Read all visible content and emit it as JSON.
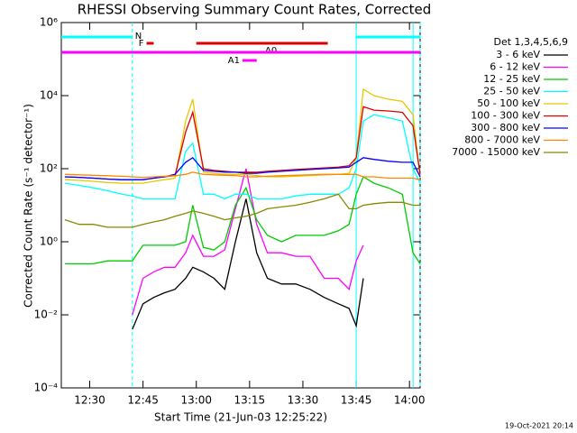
{
  "chart_data": {
    "type": "line",
    "title": "RHESSI Observing Summary Count Rates, Corrected",
    "x_label": "Start Time (21-Jun-03 12:25:22)",
    "y_label": "Corrected Count Rate (s⁻¹ detector⁻¹)",
    "footer": "19-Oct-2021 20:14",
    "legend_title": "Det 1,3,4,5,6,9",
    "legend_position": "right",
    "log_y": true,
    "grid": false,
    "xlim": [
      "12:22",
      "14:03"
    ],
    "xticks": [
      "12:30",
      "12:45",
      "13:00",
      "13:15",
      "13:30",
      "13:45",
      "14:00"
    ],
    "ylim": [
      0.0001,
      1000000
    ],
    "yticks": [
      {
        "value": 0.0001,
        "label": "10⁻⁴"
      },
      {
        "value": 0.01,
        "label": "10⁻²"
      },
      {
        "value": 1,
        "label": "10⁰"
      },
      {
        "value": 100,
        "label": "10²"
      },
      {
        "value": 10000,
        "label": "10⁴"
      },
      {
        "value": 1000000,
        "label": "10⁶"
      }
    ],
    "x": [
      "12:23",
      "12:27",
      "12:31",
      "12:35",
      "12:39",
      "12:42",
      "12:45",
      "12:48",
      "12:51",
      "12:54",
      "12:57",
      "12:59",
      "13:02",
      "13:05",
      "13:08",
      "13:11",
      "13:14",
      "13:17",
      "13:20",
      "13:24",
      "13:28",
      "13:32",
      "13:36",
      "13:40",
      "13:43",
      "13:45",
      "13:47",
      "13:50",
      "13:54",
      "13:58",
      "14:01",
      "14:03"
    ],
    "series": [
      {
        "name": "3 - 6 keV",
        "color": "#000000",
        "values": [
          null,
          null,
          null,
          null,
          null,
          0.004,
          0.02,
          0.03,
          0.04,
          0.05,
          0.1,
          0.2,
          0.15,
          0.1,
          0.05,
          1,
          15,
          0.5,
          0.1,
          0.07,
          0.07,
          0.05,
          0.03,
          0.02,
          0.015,
          0.005,
          0.1,
          null,
          null,
          null,
          null,
          null
        ]
      },
      {
        "name": "6 - 12 keV",
        "color": "#ff00ff",
        "values": [
          null,
          null,
          null,
          null,
          null,
          0.01,
          0.1,
          0.15,
          0.2,
          0.2,
          0.5,
          1.5,
          0.4,
          0.4,
          0.6,
          8,
          100,
          3,
          0.5,
          0.5,
          0.4,
          0.4,
          0.1,
          0.1,
          0.05,
          0.3,
          0.8,
          null,
          null,
          null,
          null,
          null
        ]
      },
      {
        "name": "12 - 25 keV",
        "color": "#00cc00",
        "values": [
          0.25,
          0.25,
          0.25,
          0.3,
          0.3,
          0.3,
          0.8,
          0.8,
          0.8,
          0.8,
          1,
          10,
          0.7,
          0.6,
          1,
          10,
          30,
          4,
          1.5,
          1,
          1.5,
          1.5,
          1.5,
          2,
          3,
          20,
          60,
          40,
          30,
          20,
          0.5,
          0.25
        ]
      },
      {
        "name": "25 - 50 keV",
        "color": "#00ffff",
        "values": [
          40,
          35,
          30,
          25,
          20,
          18,
          15,
          15,
          15,
          15,
          300,
          500,
          20,
          20,
          15,
          20,
          20,
          15,
          15,
          15,
          18,
          20,
          20,
          20,
          30,
          100,
          2000,
          3000,
          2500,
          2000,
          100,
          40
        ]
      },
      {
        "name": "50 - 100 keV",
        "color": "#e6c800",
        "values": [
          50,
          48,
          45,
          42,
          40,
          40,
          40,
          45,
          50,
          55,
          2000,
          8000,
          80,
          75,
          70,
          70,
          70,
          65,
          60,
          60,
          62,
          65,
          68,
          70,
          75,
          200,
          15000,
          10000,
          8000,
          7000,
          3000,
          60
        ]
      },
      {
        "name": "100 - 300 keV",
        "color": "#dd0000",
        "values": [
          60,
          58,
          55,
          52,
          50,
          50,
          50,
          55,
          60,
          65,
          1000,
          3500,
          100,
          90,
          85,
          80,
          80,
          80,
          85,
          90,
          95,
          100,
          105,
          110,
          120,
          200,
          5000,
          4000,
          3800,
          3500,
          1500,
          70
        ]
      },
      {
        "name": "300 - 800 keV",
        "color": "#0000ff",
        "values": [
          60,
          58,
          55,
          52,
          50,
          50,
          50,
          55,
          60,
          70,
          150,
          200,
          90,
          85,
          80,
          80,
          75,
          75,
          80,
          85,
          90,
          95,
          100,
          105,
          110,
          150,
          200,
          180,
          160,
          150,
          150,
          60
        ]
      },
      {
        "name": "800 - 7000 keV",
        "color": "#ff8800",
        "values": [
          70,
          68,
          66,
          64,
          62,
          60,
          58,
          60,
          62,
          64,
          70,
          80,
          70,
          68,
          66,
          65,
          60,
          60,
          62,
          64,
          66,
          68,
          70,
          70,
          70,
          70,
          60,
          60,
          55,
          55,
          55,
          50
        ]
      },
      {
        "name": "7000 - 15000 keV",
        "color": "#888800",
        "values": [
          4,
          3,
          3,
          2.5,
          2.5,
          2.5,
          3,
          3.5,
          4,
          5,
          6,
          7,
          6,
          5,
          4,
          4.5,
          5,
          6,
          8,
          9,
          10,
          12,
          15,
          20,
          8,
          8,
          10,
          11,
          12,
          12,
          10,
          10
        ]
      }
    ],
    "flags": [
      {
        "label": "N",
        "color": "#00ffff",
        "segments": [
          [
            "12:22",
            "12:42"
          ],
          [
            "13:45",
            "14:03"
          ]
        ]
      },
      {
        "label": "F",
        "color": "#dd0000",
        "segments": [
          [
            "12:46",
            "12:48"
          ]
        ]
      },
      {
        "label": "A0",
        "color": "#dd0000",
        "segments": [
          [
            "13:00",
            "13:37"
          ]
        ]
      },
      {
        "color": "#ff00ff",
        "segments": [
          [
            "12:22",
            "14:03"
          ]
        ]
      },
      {
        "label": "A1",
        "color": "#ff00ff",
        "segments": [
          [
            "13:13",
            "13:17"
          ]
        ]
      }
    ],
    "markers": [
      {
        "x": "12:42",
        "style": "dashed"
      },
      {
        "x": "13:45",
        "style": "solid"
      },
      {
        "x": "14:01",
        "style": "solid"
      },
      {
        "x": "14:03",
        "style": "dashed"
      }
    ],
    "marker_color": "#00ffff"
  }
}
